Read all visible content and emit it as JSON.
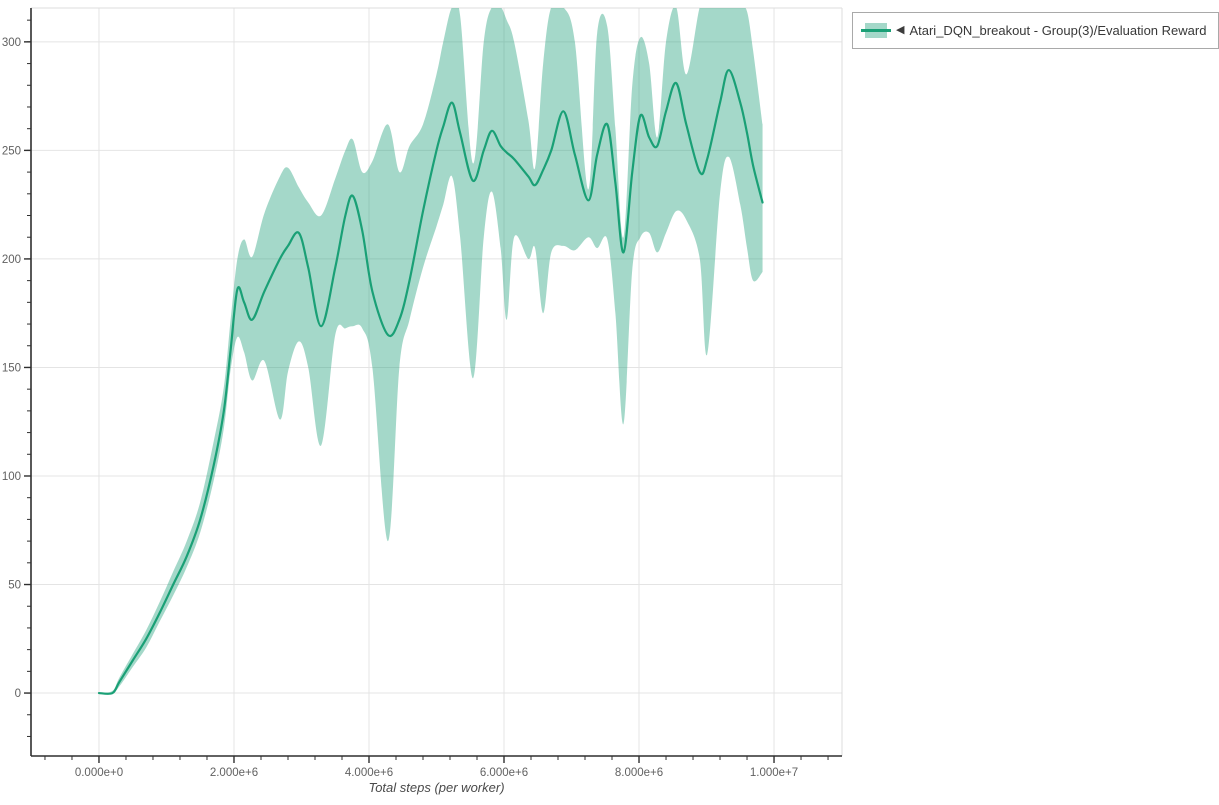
{
  "x_axis_title": "Total steps (per worker)",
  "legend": {
    "marker": "◀",
    "label": "Atari_DQN_breakout - Group(3)/Evaluation Reward"
  },
  "colors": {
    "line": "#1aa076",
    "band": "rgba(27,158,119,0.40)",
    "grid": "#e4e4e4",
    "axis": "#2f2f2f",
    "minor_border": "#dddddd",
    "tick_label": "#616161"
  },
  "chart_data": {
    "type": "line",
    "title": "",
    "xlabel": "Total steps (per worker)",
    "ylabel": "",
    "grid": true,
    "legend_position": "top-right",
    "legend_entries": [
      "Atari_DQN_breakout - Group(3)/Evaluation Reward"
    ],
    "x_tick_labels": [
      "0.000e+0",
      "2.000e+6",
      "4.000e+6",
      "6.000e+6",
      "8.000e+6",
      "1.000e+7"
    ],
    "x_tick_values_e6": [
      0,
      2,
      4,
      6,
      8,
      10
    ],
    "y_ticks": [
      0,
      50,
      100,
      150,
      200,
      250,
      300
    ],
    "x_minor_step_e6": 0.4,
    "y_minor_step": 10,
    "xlim_e6": [
      -1.007,
      11.007
    ],
    "ylim": [
      -29,
      315.6
    ],
    "series": [
      {
        "name": "Atari_DQN_breakout - Group(3)/Evaluation Reward",
        "units_x": "steps (millions)",
        "units_y": "evaluation reward",
        "x_e6": [
          0,
          0.2,
          0.3,
          0.5,
          0.7,
          0.9,
          1.1,
          1.3,
          1.5,
          1.7,
          1.85,
          1.95,
          2.05,
          2.15,
          2.27,
          2.45,
          2.68,
          2.8,
          2.96,
          3.1,
          3.29,
          3.5,
          3.65,
          3.76,
          3.9,
          4.05,
          4.28,
          4.45,
          4.6,
          4.8,
          5,
          5.1,
          5.23,
          5.35,
          5.54,
          5.7,
          5.82,
          5.95,
          6.04,
          6.15,
          6.36,
          6.46,
          6.58,
          6.7,
          6.88,
          7.05,
          7.25,
          7.38,
          7.53,
          7.65,
          7.77,
          7.9,
          8.02,
          8.15,
          8.27,
          8.4,
          8.55,
          8.7,
          8.9,
          9.01,
          9.2,
          9.33,
          9.5,
          9.6,
          9.69,
          9.83
        ],
        "mean": [
          0,
          0,
          5,
          15,
          25,
          37,
          50,
          63,
          80,
          105,
          130,
          158,
          186,
          180,
          172,
          185,
          200,
          206,
          212,
          196,
          169,
          196,
          220,
          229,
          213,
          185,
          165,
          172,
          190,
          222,
          250,
          261,
          272,
          258,
          236,
          250,
          259,
          252,
          249,
          246,
          238,
          234,
          241,
          250,
          268,
          248,
          227,
          248,
          262,
          235,
          203,
          240,
          266,
          256,
          252,
          268,
          281,
          262,
          240,
          246,
          272,
          287,
          272,
          258,
          243,
          226
        ],
        "lower": [
          0,
          0,
          3,
          12,
          21,
          33,
          45,
          58,
          74,
          98,
          122,
          149,
          164,
          157,
          144,
          153,
          126,
          148,
          162,
          150,
          114,
          165,
          168,
          169,
          168,
          150,
          70,
          150,
          172,
          196,
          215,
          225,
          238,
          210,
          145,
          210,
          231,
          205,
          172,
          210,
          200,
          205,
          175,
          203,
          206,
          204,
          210,
          205,
          209,
          175,
          124,
          195,
          210,
          212,
          203,
          212,
          222,
          218,
          200,
          156,
          230,
          247,
          225,
          205,
          190,
          194
        ],
        "upper": [
          0,
          1,
          7,
          18,
          29,
          42,
          56,
          70,
          88,
          116,
          141,
          172,
          200,
          209,
          201,
          221,
          238,
          242,
          233,
          226,
          220,
          237,
          250,
          255,
          240,
          245,
          262,
          240,
          252,
          262,
          285,
          300,
          316,
          312,
          244,
          300,
          316,
          316,
          310,
          300,
          264,
          242,
          290,
          316,
          316,
          300,
          232,
          304,
          307,
          260,
          210,
          280,
          302,
          290,
          256,
          300,
          316,
          285,
          316,
          316,
          316,
          316,
          316,
          314,
          296,
          262
        ]
      }
    ]
  }
}
